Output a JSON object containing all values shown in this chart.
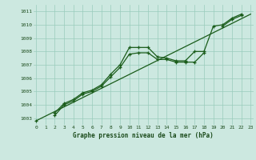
{
  "title": "Graphe pression niveau de la mer (hPa)",
  "background_color": "#cce8e0",
  "grid_color": "#99ccbb",
  "line_color": "#1a5c1a",
  "x_hours": [
    0,
    1,
    2,
    3,
    4,
    5,
    6,
    7,
    8,
    9,
    10,
    11,
    12,
    13,
    14,
    15,
    16,
    17,
    18,
    19,
    20,
    21,
    22,
    23
  ],
  "line1": [
    1002.8,
    null,
    1003.4,
    1004.1,
    1004.4,
    1004.9,
    1005.1,
    1005.5,
    1006.3,
    1007.0,
    1008.3,
    1008.3,
    1008.3,
    1007.6,
    1007.5,
    1007.3,
    1007.3,
    1008.0,
    1008.0,
    1009.9,
    1010.0,
    1010.5,
    1010.8,
    null
  ],
  "line2": [
    null,
    null,
    1003.2,
    1004.0,
    1004.3,
    1004.8,
    1005.0,
    1005.4,
    1006.1,
    1006.8,
    1007.8,
    1007.9,
    1007.9,
    1007.4,
    1007.4,
    1007.2,
    1007.2,
    1007.2,
    1007.9,
    null,
    1009.9,
    1010.4,
    1010.7,
    null
  ],
  "line3_x": [
    0,
    23
  ],
  "line3_y": [
    1002.8,
    1010.8
  ],
  "ylim": [
    1002.5,
    1011.5
  ],
  "yticks": [
    1003,
    1004,
    1005,
    1006,
    1007,
    1008,
    1009,
    1010,
    1011
  ],
  "xlim": [
    -0.3,
    23.3
  ],
  "figw": 3.2,
  "figh": 2.0,
  "dpi": 100
}
